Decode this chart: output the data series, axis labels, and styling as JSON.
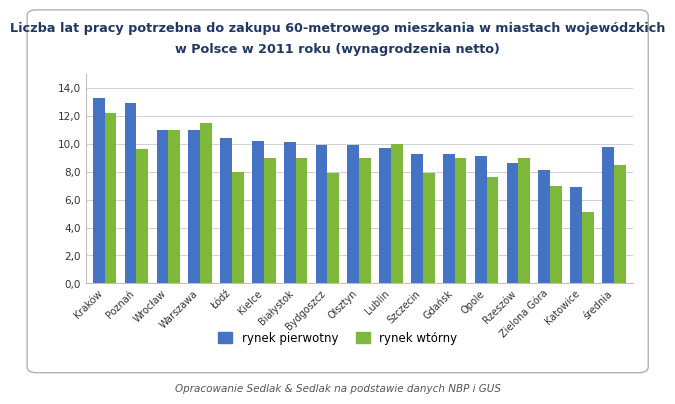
{
  "title_line1": "Liczba lat pracy potrzebna do zakupu 60-metrowego mieszkania w miastach wojewódzkich",
  "title_line2": "w Polsce w 2011 roku (wynagrodzenia netto)",
  "categories": [
    "Kraków",
    "Poznań",
    "Wrocław",
    "Warszawa",
    "Łódź",
    "Kielce",
    "Białystok",
    "Bydgoszcz",
    "Olsztyn",
    "Lublin",
    "Szczecin",
    "Gdańsk",
    "Opole",
    "Rzeszów",
    "Zielona Góra",
    "Katowice",
    "średnia"
  ],
  "primary_market": [
    13.3,
    12.9,
    11.0,
    11.0,
    10.4,
    10.2,
    10.1,
    9.9,
    9.9,
    9.7,
    9.3,
    9.3,
    9.1,
    8.6,
    8.1,
    6.9,
    9.8
  ],
  "secondary_market": [
    12.2,
    9.6,
    11.0,
    11.5,
    8.0,
    9.0,
    9.0,
    7.9,
    9.0,
    10.0,
    7.9,
    9.0,
    7.6,
    9.0,
    7.0,
    5.1,
    8.5
  ],
  "bar_color_primary": "#4472C4",
  "bar_color_secondary": "#7DB83A",
  "legend_primary": "rynek pierwotny",
  "legend_secondary": "rynek wtórny",
  "ylim": [
    0,
    15
  ],
  "yticks": [
    0.0,
    2.0,
    4.0,
    6.0,
    8.0,
    10.0,
    12.0,
    14.0
  ],
  "ytick_labels": [
    "0,0",
    "2,0",
    "4,0",
    "6,0",
    "8,0",
    "10,0",
    "12,0",
    "14,0"
  ],
  "footnote": "Opracowanie Sedlak & Sedlak na podstawie danych NBP i GUS",
  "background_color": "#FFFFFF",
  "title_color": "#1F3864",
  "footnote_color": "#555555",
  "border_color": "#B0B0B0",
  "grid_color": "#D0D0D0"
}
